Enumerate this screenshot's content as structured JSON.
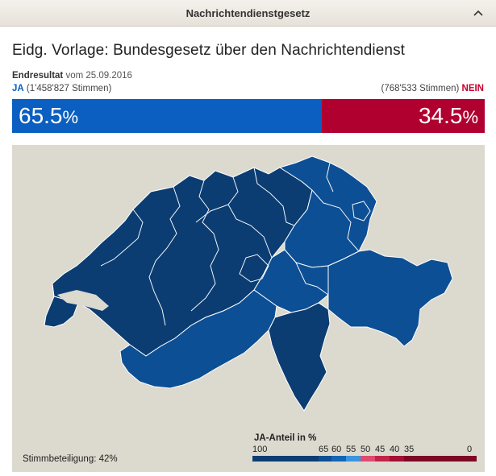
{
  "header": {
    "title": "Nachrichtendienstgesetz",
    "chevron_icon": "chevron-up-icon"
  },
  "vote": {
    "title": "Eidg. Vorlage: Bundesgesetz über den Nachrichtendienst",
    "result_label": "Endresultat",
    "result_date": "vom 25.09.2016"
  },
  "yes": {
    "word": "JA",
    "votes": "(1'458'827 Stimmen)",
    "value": "65.5",
    "pct_sign": "%",
    "color": "#0a5fc0"
  },
  "no": {
    "word": "NEIN",
    "votes": "(768'533 Stimmen)",
    "value": "34.5",
    "pct_sign": "%",
    "color": "#b00030"
  },
  "map": {
    "turnout": "Stimmbeteiligung: 42%",
    "background": "#dcd9cf",
    "region_colors": {
      "dark": "#0b3d73",
      "mid": "#0d4f94",
      "light": "#0f5fad"
    }
  },
  "legend": {
    "title": "JA-Anteil in %",
    "labels": [
      "100",
      "65",
      "60",
      "55",
      "50",
      "45",
      "40",
      "35",
      "0"
    ],
    "colors": [
      "#0b3d73",
      "#0d4f94",
      "#1466b5",
      "#3b95de",
      "#e04a6e",
      "#c22447",
      "#a31035",
      "#7d0826"
    ]
  }
}
